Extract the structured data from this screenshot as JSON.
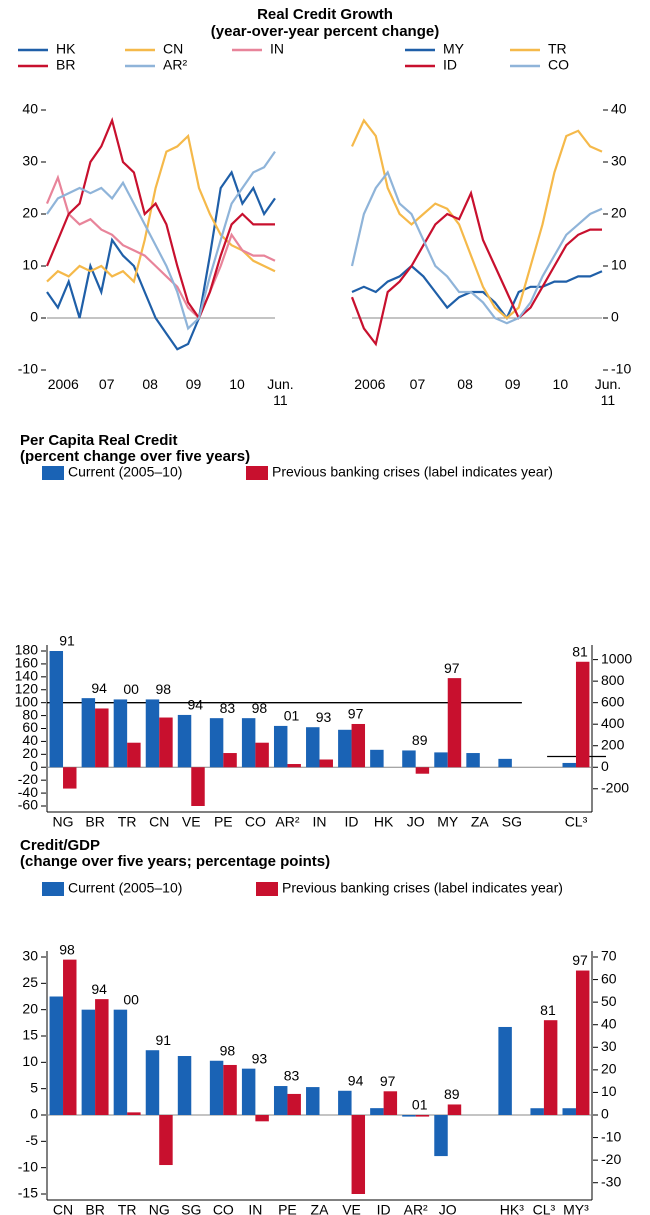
{
  "chart_data": [
    {
      "type": "line",
      "title": "Real Credit Growth",
      "subtitle": "(year-over-year percent change)",
      "categories": [
        null,
        "2006",
        null,
        null,
        null,
        "07",
        null,
        null,
        null,
        "08",
        null,
        null,
        null,
        "09",
        null,
        null,
        null,
        "10",
        null,
        null,
        null,
        "Jun. 11"
      ],
      "series": [
        {
          "name": "HK",
          "color": "#1f5fa8",
          "values": [
            5,
            2,
            7,
            0,
            10,
            5,
            15,
            12,
            10,
            5,
            0,
            -3,
            -6,
            -5,
            0,
            12,
            25,
            28,
            22,
            25,
            20,
            23
          ]
        },
        {
          "name": "CN",
          "color": "#f5b94a",
          "values": [
            7,
            9,
            8,
            10,
            9,
            10,
            8,
            9,
            7,
            15,
            25,
            32,
            33,
            35,
            25,
            20,
            16,
            14,
            13,
            11,
            10,
            9
          ]
        },
        {
          "name": "IN",
          "color": "#e8849a",
          "values": [
            22,
            27,
            20,
            18,
            19,
            17,
            16,
            14,
            13,
            12,
            10,
            8,
            6,
            2,
            0,
            5,
            10,
            16,
            13,
            12,
            12,
            11
          ]
        },
        {
          "name": "BR",
          "color": "#c8102e",
          "values": [
            10,
            15,
            20,
            22,
            30,
            33,
            38,
            30,
            28,
            20,
            22,
            18,
            10,
            3,
            0,
            5,
            12,
            18,
            20,
            18,
            18,
            18
          ]
        },
        {
          "name": "AR²",
          "color": "#8fb4d9",
          "values": [
            20,
            23,
            24,
            25,
            24,
            25,
            23,
            26,
            22,
            18,
            14,
            10,
            5,
            -2,
            0,
            8,
            15,
            22,
            25,
            28,
            29,
            32
          ]
        }
      ],
      "ylim": [
        -10,
        40
      ],
      "yticks": [
        -10,
        0,
        10,
        20,
        30,
        40
      ],
      "ytick_side": "left"
    },
    {
      "type": "line",
      "categories": [
        null,
        "2006",
        null,
        null,
        null,
        "07",
        null,
        null,
        null,
        "08",
        null,
        null,
        null,
        "09",
        null,
        null,
        null,
        "10",
        null,
        null,
        null,
        "Jun. 11"
      ],
      "series": [
        {
          "name": "MY",
          "color": "#1f5fa8",
          "values": [
            5,
            6,
            5,
            7,
            8,
            10,
            8,
            5,
            2,
            4,
            5,
            5,
            3,
            0,
            5,
            6,
            6,
            7,
            7,
            8,
            8,
            9
          ]
        },
        {
          "name": "TR",
          "color": "#f5b94a",
          "values": [
            33,
            38,
            35,
            25,
            20,
            18,
            20,
            22,
            21,
            18,
            12,
            6,
            2,
            0,
            2,
            10,
            18,
            28,
            35,
            36,
            33,
            32
          ]
        },
        {
          "name": "ID",
          "color": "#c8102e",
          "values": [
            4,
            -2,
            -5,
            5,
            7,
            10,
            14,
            18,
            20,
            19,
            24,
            15,
            10,
            5,
            0,
            2,
            6,
            10,
            14,
            16,
            17,
            17
          ]
        },
        {
          "name": "CO",
          "color": "#8fb4d9",
          "values": [
            10,
            20,
            25,
            28,
            22,
            20,
            15,
            10,
            8,
            5,
            5,
            3,
            0,
            -1,
            0,
            3,
            8,
            12,
            16,
            18,
            20,
            21
          ]
        }
      ],
      "ylim": [
        -10,
        40
      ],
      "yticks": [
        -10,
        0,
        10,
        20,
        30,
        40
      ],
      "ytick_side": "right"
    },
    {
      "type": "bar",
      "title": "Per Capita Real Credit",
      "subtitle": "(percent change over five years)",
      "categories": [
        "NG",
        "BR",
        "TR",
        "CN",
        "VE",
        "PE",
        "CO",
        "AR²",
        "IN",
        "ID",
        "HK",
        "JO",
        "MY",
        "ZA",
        "SG",
        null,
        "CL³"
      ],
      "category_axis": [
        "y",
        "y",
        "y",
        "y",
        "y",
        "y",
        "y",
        "y",
        "y",
        "y",
        "y",
        "y",
        "y",
        "y",
        "y",
        "y",
        "y2"
      ],
      "series": [
        {
          "name": "Current (2005–10)",
          "color": "#1a63b5",
          "values": [
            180,
            107,
            105,
            105,
            81,
            76,
            76,
            64,
            62,
            58,
            27,
            26,
            23,
            22,
            13,
            null,
            40
          ]
        },
        {
          "name": "Previous banking crises (label indicates year)",
          "color": "#c8102e",
          "values": [
            -33,
            91,
            38,
            77,
            -60,
            22,
            38,
            5,
            12,
            67,
            null,
            -10,
            138,
            null,
            null,
            null,
            980
          ]
        }
      ],
      "bar_labels": [
        "91",
        "94",
        "00",
        "98",
        "94",
        "83",
        "98",
        "01",
        "93",
        "97",
        null,
        "89",
        "97",
        null,
        null,
        null,
        "81"
      ],
      "reference_lines": [
        {
          "value": 100,
          "axis": "y"
        },
        {
          "value": 100,
          "axis": "y2"
        }
      ],
      "ylim": [
        -60,
        180
      ],
      "yticks": [
        -60,
        -40,
        -20,
        0,
        20,
        40,
        60,
        80,
        100,
        120,
        140,
        160,
        180
      ],
      "y2lim": [
        -360,
        1080
      ],
      "y2ticks": [
        -200,
        0,
        200,
        400,
        600,
        800,
        1000
      ]
    },
    {
      "type": "bar",
      "title": "Credit/GDP",
      "subtitle": "(change over five years; percentage points)",
      "categories": [
        "CN",
        "BR",
        "TR",
        "NG",
        "SG",
        "CO",
        "IN",
        "PE",
        "ZA",
        "VE",
        "ID",
        "AR²",
        "JO",
        null,
        "HK³",
        "CL³",
        "MY³"
      ],
      "category_axis": [
        "y",
        "y",
        "y",
        "y",
        "y",
        "y",
        "y",
        "y",
        "y",
        "y",
        "y",
        "y",
        "y",
        "y",
        "y2",
        "y2",
        "y2"
      ],
      "series": [
        {
          "name": "Current (2005–10)",
          "color": "#1a63b5",
          "values": [
            22.5,
            20,
            20,
            12.3,
            11.2,
            10.3,
            8.8,
            5.5,
            5.3,
            4.6,
            1.3,
            -0.3,
            -7.8,
            null,
            39,
            3,
            3
          ]
        },
        {
          "name": "Previous banking crises (label indicates year)",
          "color": "#c8102e",
          "values": [
            29.5,
            22,
            0.5,
            -9.5,
            null,
            9.5,
            -1.2,
            4,
            null,
            -15,
            4.5,
            -0.3,
            2,
            null,
            null,
            42,
            64
          ]
        }
      ],
      "bar_labels": [
        "98",
        "94",
        "00",
        "91",
        null,
        "98",
        "93",
        "83",
        null,
        "94",
        "97",
        "01",
        "89",
        null,
        null,
        "81",
        "97"
      ],
      "ylim": [
        -15,
        30
      ],
      "yticks": [
        -15,
        -10,
        -5,
        0,
        5,
        10,
        15,
        20,
        25,
        30
      ],
      "y2lim": [
        -35,
        70
      ],
      "y2ticks": [
        -30,
        -20,
        -10,
        0,
        10,
        20,
        30,
        40,
        50,
        60,
        70
      ]
    }
  ]
}
